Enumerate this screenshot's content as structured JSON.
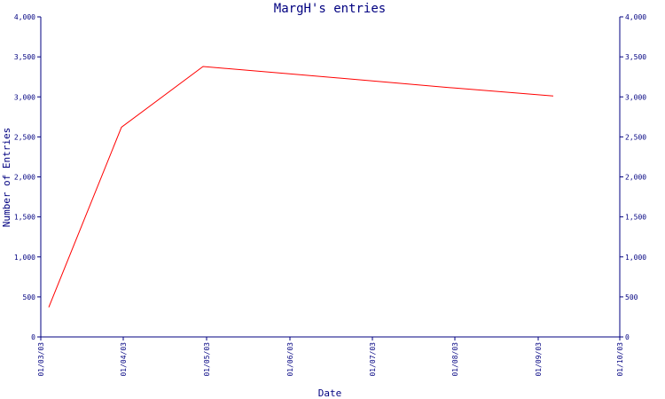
{
  "chart_data": {
    "type": "line",
    "title": "MargH's entries",
    "xlabel": "Date",
    "ylabel": "Number of Entries",
    "categories": [
      "01/03/03",
      "01/04/03",
      "01/05/03",
      "01/06/03",
      "01/07/03",
      "01/08/03",
      "01/09/03",
      "01/10/03"
    ],
    "x": [
      "01/03/03",
      "01/04/03",
      "01/05/03",
      "01/06/03",
      "01/07/03",
      "01/08/03",
      "01/09/03"
    ],
    "values": [
      370,
      2620,
      3380,
      3290,
      3200,
      3110,
      3010
    ],
    "ylim": [
      0,
      4000
    ],
    "yticks": [
      0,
      500,
      1000,
      1500,
      2000,
      2500,
      3000,
      3500,
      4000
    ],
    "ytick_labels": [
      "0",
      "500",
      "1,000",
      "1,500",
      "2,000",
      "2,500",
      "3,000",
      "3,500",
      "4,000"
    ],
    "grid": false,
    "colors": {
      "axis": "#000080",
      "line": "#ff0000"
    }
  }
}
